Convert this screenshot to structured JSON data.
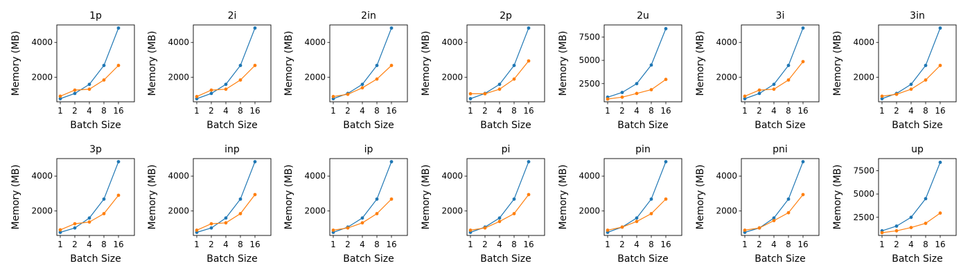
{
  "colors": {
    "series_1": "#1f77b4",
    "series_2": "#ff7f0e"
  },
  "chart_data": [
    {
      "type": "line",
      "title": "1p",
      "xlabel": "Batch Size",
      "ylabel": "Memory (MB)",
      "x": [
        1,
        2,
        4,
        8,
        16
      ],
      "ylim": [
        600,
        5000
      ],
      "yticks": [
        2000,
        4000
      ],
      "grid": false,
      "series": [
        {
          "values": [
            780,
            1080,
            1600,
            2680,
            4820
          ]
        },
        {
          "values": [
            920,
            1270,
            1320,
            1850,
            2680
          ]
        }
      ]
    },
    {
      "type": "line",
      "title": "2i",
      "xlabel": "Batch Size",
      "ylabel": "Memory (MB)",
      "x": [
        1,
        2,
        4,
        8,
        16
      ],
      "ylim": [
        600,
        5000
      ],
      "yticks": [
        2000,
        4000
      ],
      "grid": false,
      "series": [
        {
          "values": [
            780,
            1080,
            1600,
            2680,
            4820
          ]
        },
        {
          "values": [
            900,
            1270,
            1320,
            1850,
            2680
          ]
        }
      ]
    },
    {
      "type": "line",
      "title": "2in",
      "xlabel": "Batch Size",
      "ylabel": "Memory (MB)",
      "x": [
        1,
        2,
        4,
        8,
        16
      ],
      "ylim": [
        600,
        5000
      ],
      "yticks": [
        2000,
        4000
      ],
      "grid": false,
      "series": [
        {
          "values": [
            780,
            1080,
            1600,
            2680,
            4820
          ]
        },
        {
          "values": [
            900,
            1030,
            1400,
            1900,
            2680
          ]
        }
      ]
    },
    {
      "type": "line",
      "title": "2p",
      "xlabel": "Batch Size",
      "ylabel": "Memory (MB)",
      "x": [
        1,
        2,
        4,
        8,
        16
      ],
      "ylim": [
        600,
        5000
      ],
      "yticks": [
        2000,
        4000
      ],
      "grid": false,
      "series": [
        {
          "values": [
            780,
            1080,
            1600,
            2680,
            4820
          ]
        },
        {
          "values": [
            1060,
            1060,
            1320,
            1900,
            2940
          ]
        }
      ]
    },
    {
      "type": "line",
      "title": "2u",
      "xlabel": "Batch Size",
      "ylabel": "Memory (MB)",
      "x": [
        1,
        2,
        4,
        8,
        16
      ],
      "ylim": [
        550,
        8800
      ],
      "yticks": [
        2500,
        5000,
        7500
      ],
      "grid": false,
      "series": [
        {
          "values": [
            1050,
            1550,
            2500,
            4500,
            8400
          ]
        },
        {
          "values": [
            850,
            1050,
            1450,
            1850,
            2950
          ]
        }
      ]
    },
    {
      "type": "line",
      "title": "3i",
      "xlabel": "Batch Size",
      "ylabel": "Memory (MB)",
      "x": [
        1,
        2,
        4,
        8,
        16
      ],
      "ylim": [
        600,
        5000
      ],
      "yticks": [
        2000,
        4000
      ],
      "grid": false,
      "series": [
        {
          "values": [
            780,
            1080,
            1600,
            2680,
            4820
          ]
        },
        {
          "values": [
            920,
            1270,
            1320,
            1850,
            2900
          ]
        }
      ]
    },
    {
      "type": "line",
      "title": "3in",
      "xlabel": "Batch Size",
      "ylabel": "Memory (MB)",
      "x": [
        1,
        2,
        4,
        8,
        16
      ],
      "ylim": [
        600,
        5000
      ],
      "yticks": [
        2000,
        4000
      ],
      "grid": false,
      "series": [
        {
          "values": [
            780,
            1080,
            1600,
            2680,
            4820
          ]
        },
        {
          "values": [
            920,
            1030,
            1320,
            1850,
            2680
          ]
        }
      ]
    },
    {
      "type": "line",
      "title": "3p",
      "xlabel": "Batch Size",
      "ylabel": "Memory (MB)",
      "x": [
        1,
        2,
        4,
        8,
        16
      ],
      "ylim": [
        600,
        5000
      ],
      "yticks": [
        2000,
        4000
      ],
      "grid": false,
      "series": [
        {
          "values": [
            780,
            1030,
            1600,
            2680,
            4820
          ]
        },
        {
          "values": [
            920,
            1270,
            1370,
            1850,
            2900
          ]
        }
      ]
    },
    {
      "type": "line",
      "title": "inp",
      "xlabel": "Batch Size",
      "ylabel": "Memory (MB)",
      "x": [
        1,
        2,
        4,
        8,
        16
      ],
      "ylim": [
        600,
        5000
      ],
      "yticks": [
        2000,
        4000
      ],
      "grid": false,
      "series": [
        {
          "values": [
            780,
            1030,
            1600,
            2680,
            4820
          ]
        },
        {
          "values": [
            900,
            1270,
            1320,
            1850,
            2940
          ]
        }
      ]
    },
    {
      "type": "line",
      "title": "ip",
      "xlabel": "Batch Size",
      "ylabel": "Memory (MB)",
      "x": [
        1,
        2,
        4,
        8,
        16
      ],
      "ylim": [
        600,
        5000
      ],
      "yticks": [
        2000,
        4000
      ],
      "grid": false,
      "series": [
        {
          "values": [
            780,
            1080,
            1600,
            2680,
            4820
          ]
        },
        {
          "values": [
            900,
            1030,
            1320,
            1850,
            2680
          ]
        }
      ]
    },
    {
      "type": "line",
      "title": "pi",
      "xlabel": "Batch Size",
      "ylabel": "Memory (MB)",
      "x": [
        1,
        2,
        4,
        8,
        16
      ],
      "ylim": [
        600,
        5000
      ],
      "yticks": [
        2000,
        4000
      ],
      "grid": false,
      "series": [
        {
          "values": [
            780,
            1080,
            1600,
            2680,
            4820
          ]
        },
        {
          "values": [
            900,
            1030,
            1400,
            1850,
            2940
          ]
        }
      ]
    },
    {
      "type": "line",
      "title": "pin",
      "xlabel": "Batch Size",
      "ylabel": "Memory (MB)",
      "x": [
        1,
        2,
        4,
        8,
        16
      ],
      "ylim": [
        600,
        5000
      ],
      "yticks": [
        2000,
        4000
      ],
      "grid": false,
      "series": [
        {
          "values": [
            780,
            1080,
            1600,
            2680,
            4820
          ]
        },
        {
          "values": [
            900,
            1080,
            1400,
            1850,
            2680
          ]
        }
      ]
    },
    {
      "type": "line",
      "title": "pni",
      "xlabel": "Batch Size",
      "ylabel": "Memory (MB)",
      "x": [
        1,
        2,
        4,
        8,
        16
      ],
      "ylim": [
        600,
        5000
      ],
      "yticks": [
        2000,
        4000
      ],
      "grid": false,
      "series": [
        {
          "values": [
            780,
            1030,
            1600,
            2680,
            4820
          ]
        },
        {
          "values": [
            900,
            1030,
            1450,
            1900,
            2940
          ]
        }
      ]
    },
    {
      "type": "line",
      "title": "up",
      "xlabel": "Batch Size",
      "ylabel": "Memory (MB)",
      "x": [
        1,
        2,
        4,
        8,
        16
      ],
      "ylim": [
        550,
        8800
      ],
      "yticks": [
        2500,
        5000,
        7500
      ],
      "grid": false,
      "series": [
        {
          "values": [
            1050,
            1550,
            2500,
            4500,
            8400
          ]
        },
        {
          "values": [
            850,
            1050,
            1400,
            1850,
            2950
          ]
        }
      ]
    }
  ]
}
